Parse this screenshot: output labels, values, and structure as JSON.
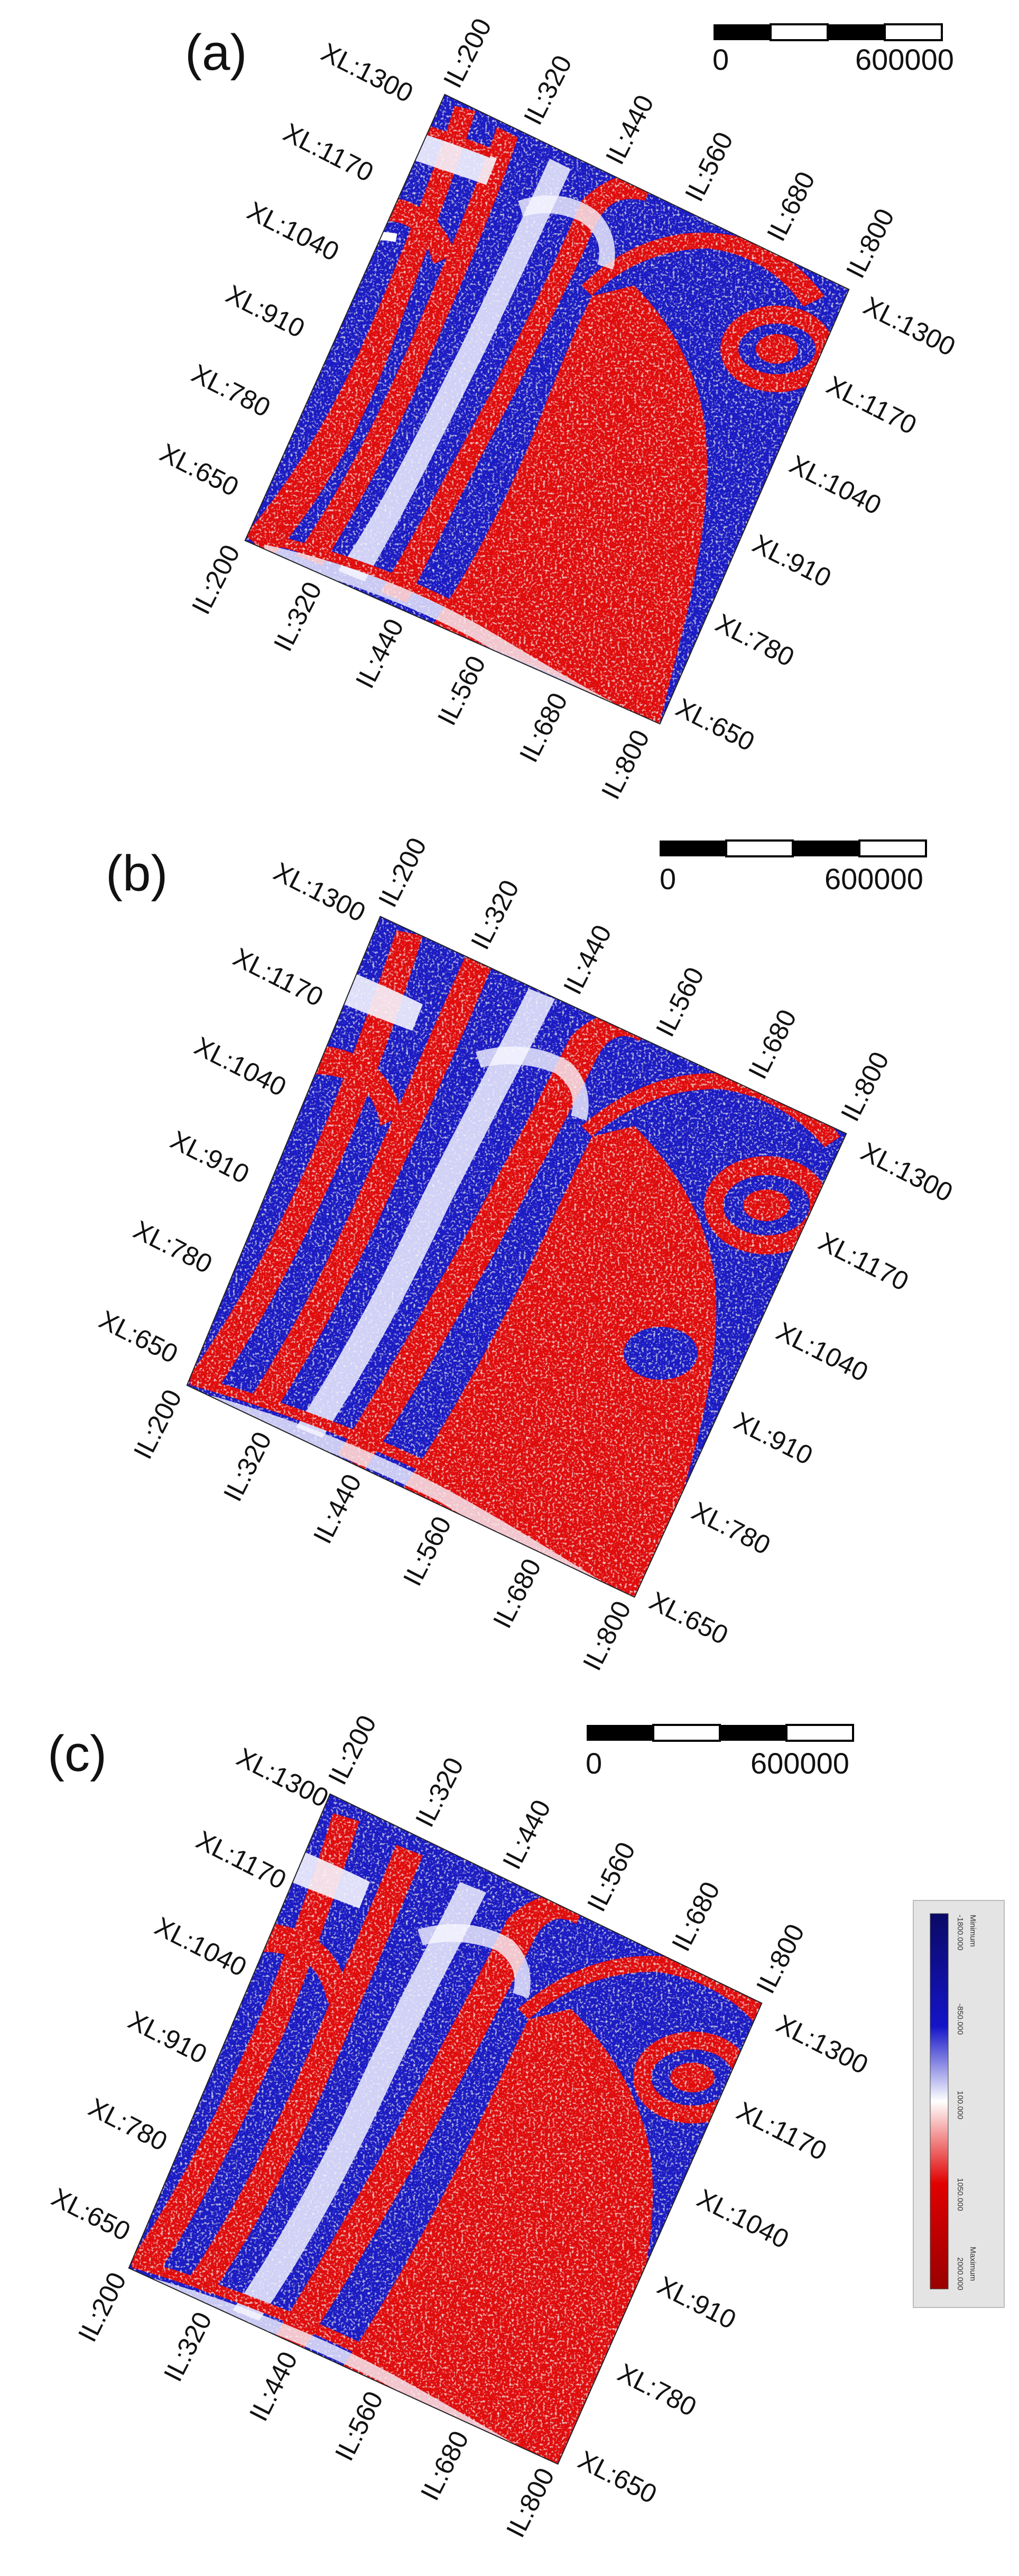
{
  "panels": [
    {
      "id": "a",
      "label": "(a)",
      "scale_bar": {
        "start_label": "0",
        "end_label": "600000"
      },
      "top_left_labels": [
        "XL:1300",
        "XL:1170",
        "XL:1040",
        "XL:910",
        "XL:780",
        "XL:650"
      ],
      "top_right_labels": [
        "IL:200",
        "IL:320",
        "IL:440",
        "IL:560",
        "IL:680",
        "IL:800"
      ],
      "bottom_left_labels": [
        "IL:200",
        "IL:320",
        "IL:440",
        "IL:560",
        "IL:680",
        "IL:800"
      ],
      "bottom_right_labels": [
        "XL:1300",
        "XL:1170",
        "XL:1040",
        "XL:910",
        "XL:780",
        "XL:650"
      ]
    },
    {
      "id": "b",
      "label": "(b)",
      "scale_bar": {
        "start_label": "0",
        "end_label": "600000"
      },
      "top_left_labels": [
        "XL:1300",
        "XL:1170",
        "XL:1040",
        "XL:910",
        "XL:780",
        "XL:650"
      ],
      "top_right_labels": [
        "IL:200",
        "IL:320",
        "IL:440",
        "IL:560",
        "IL:680",
        "IL:800"
      ],
      "bottom_left_labels": [
        "IL:200",
        "IL:320",
        "IL:440",
        "IL:560",
        "IL:680",
        "IL:800"
      ],
      "bottom_right_labels": [
        "XL:1300",
        "XL:1170",
        "XL:1040",
        "XL:910",
        "XL:780",
        "XL:650"
      ]
    },
    {
      "id": "c",
      "label": "(c)",
      "scale_bar": {
        "start_label": "0",
        "end_label": "600000"
      },
      "top_left_labels": [
        "XL:1300",
        "XL:1170",
        "XL:1040",
        "XL:910",
        "XL:780",
        "XL:650"
      ],
      "top_right_labels": [
        "IL:200",
        "IL:320",
        "IL:440",
        "IL:560",
        "IL:680",
        "IL:800"
      ],
      "bottom_left_labels": [
        "IL:200",
        "IL:320",
        "IL:440",
        "IL:560",
        "IL:680",
        "IL:800"
      ],
      "bottom_right_labels": [
        "XL:1300",
        "XL:1170",
        "XL:1040",
        "XL:910",
        "XL:780",
        "XL:650"
      ]
    }
  ],
  "colorbar": {
    "min_label": "Minimum",
    "max_label": "Maximum",
    "tick_labels": [
      "-1800.000",
      "-850.000",
      "100.000",
      "1050.000",
      "2000.000"
    ],
    "colors": {
      "min": "#0a0a66",
      "low": "#1414c8",
      "mid": "#ffffff",
      "high": "#e00000",
      "max": "#990000"
    }
  },
  "map_colors": {
    "blue": "#1a1ac4",
    "red": "#e00b0b",
    "white": "#ffffff"
  }
}
